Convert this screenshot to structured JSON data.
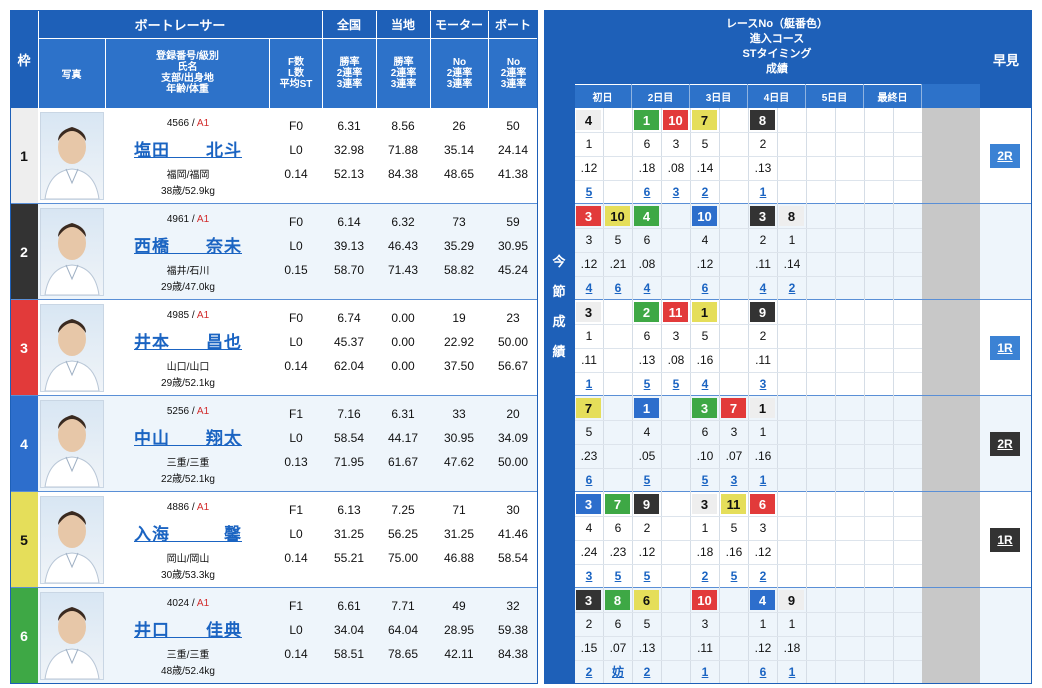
{
  "header": {
    "waku": "枠",
    "boat_racer": "ボートレーサー",
    "photo": "写真",
    "reg_info": [
      "登録番号/級別",
      "氏名",
      "支部/出身地",
      "年齢/体重"
    ],
    "f_info": [
      "F数",
      "L数",
      "平均ST"
    ],
    "national": "全国",
    "local": "当地",
    "motor": "モーター",
    "boat": "ボート",
    "rate_info": [
      "勝率",
      "2連率",
      "3連率"
    ],
    "no_info": [
      "No",
      "2連率",
      "3連率"
    ],
    "race_info": [
      "レースNo（艇番色）",
      "進入コース",
      "STタイミング",
      "成績"
    ],
    "days": [
      "初日",
      "2日目",
      "3日目",
      "4日目",
      "5日目",
      "最終日"
    ],
    "hayami": "早見",
    "konsetsu": [
      "今",
      "節",
      "成",
      "績"
    ]
  },
  "colors": {
    "header": "#1e60b8",
    "frame": [
      "#eeeeee",
      "#333333",
      "#e23a3a",
      "#2d6ecc",
      "#e5de5a",
      "#3ea845"
    ],
    "hayami_blue": "#3b82d4",
    "hayami_black": "#333333"
  },
  "racers": [
    {
      "waku": "1",
      "reg": "4566",
      "cls": "A1",
      "name": "塩田　　北斗",
      "branch": "福岡/福岡",
      "age": "38歳/52.9kg",
      "f": "F0",
      "l": "L0",
      "st": "0.14",
      "nat": [
        "6.31",
        "32.98",
        "52.13"
      ],
      "loc": [
        "8.56",
        "71.88",
        "84.38"
      ],
      "motor": [
        "26",
        "35.14",
        "48.65"
      ],
      "boat": [
        "50",
        "24.14",
        "41.38"
      ],
      "hayami": "2R",
      "hayami_color": "blue",
      "results": [
        {
          "col": 0,
          "race": "4",
          "color": "#eeeeee",
          "course": "1",
          "st": ".12",
          "rank": "5"
        },
        {
          "col": 2,
          "race": "1",
          "color": "#3ea845",
          "course": "6",
          "st": ".18",
          "rank": "6"
        },
        {
          "col": 3,
          "race": "10",
          "color": "#e23a3a",
          "course": "3",
          "st": ".08",
          "rank": "3"
        },
        {
          "col": 4,
          "race": "7",
          "color": "#e5de5a",
          "course": "5",
          "st": ".14",
          "rank": "2"
        },
        {
          "col": 6,
          "race": "8",
          "color": "#333333",
          "course": "2",
          "st": ".13",
          "rank": "1"
        }
      ]
    },
    {
      "waku": "2",
      "reg": "4961",
      "cls": "A1",
      "name": "西橋　　奈未",
      "branch": "福井/石川",
      "age": "29歳/47.0kg",
      "f": "F0",
      "l": "L0",
      "st": "0.15",
      "nat": [
        "6.14",
        "39.13",
        "58.70"
      ],
      "loc": [
        "6.32",
        "46.43",
        "71.43"
      ],
      "motor": [
        "73",
        "35.29",
        "58.82"
      ],
      "boat": [
        "59",
        "30.95",
        "45.24"
      ],
      "hayami": "",
      "hayami_color": "",
      "results": [
        {
          "col": 0,
          "race": "3",
          "color": "#e23a3a",
          "course": "3",
          "st": ".12",
          "rank": "4"
        },
        {
          "col": 1,
          "race": "10",
          "color": "#e5de5a",
          "course": "5",
          "st": ".21",
          "rank": "6"
        },
        {
          "col": 2,
          "race": "4",
          "color": "#3ea845",
          "course": "6",
          "st": ".08",
          "rank": "4"
        },
        {
          "col": 4,
          "race": "10",
          "color": "#2d6ecc",
          "course": "4",
          "st": ".12",
          "rank": "6"
        },
        {
          "col": 6,
          "race": "3",
          "color": "#333333",
          "course": "2",
          "st": ".11",
          "rank": "4"
        },
        {
          "col": 7,
          "race": "8",
          "color": "#eeeeee",
          "course": "1",
          "st": ".14",
          "rank": "2"
        }
      ]
    },
    {
      "waku": "3",
      "reg": "4985",
      "cls": "A1",
      "name": "井本　　昌也",
      "branch": "山口/山口",
      "age": "29歳/52.1kg",
      "f": "F0",
      "l": "L0",
      "st": "0.14",
      "nat": [
        "6.74",
        "45.37",
        "62.04"
      ],
      "loc": [
        "0.00",
        "0.00",
        "0.00"
      ],
      "motor": [
        "19",
        "22.92",
        "37.50"
      ],
      "boat": [
        "23",
        "50.00",
        "56.67"
      ],
      "hayami": "1R",
      "hayami_color": "blue",
      "results": [
        {
          "col": 0,
          "race": "3",
          "color": "#eeeeee",
          "course": "1",
          "st": ".11",
          "rank": "1"
        },
        {
          "col": 2,
          "race": "2",
          "color": "#3ea845",
          "course": "6",
          "st": ".13",
          "rank": "5"
        },
        {
          "col": 3,
          "race": "11",
          "color": "#e23a3a",
          "course": "3",
          "st": ".08",
          "rank": "5"
        },
        {
          "col": 4,
          "race": "1",
          "color": "#e5de5a",
          "course": "5",
          "st": ".16",
          "rank": "4"
        },
        {
          "col": 6,
          "race": "9",
          "color": "#333333",
          "course": "2",
          "st": ".11",
          "rank": "3"
        }
      ]
    },
    {
      "waku": "4",
      "reg": "5256",
      "cls": "A1",
      "name": "中山　　翔太",
      "branch": "三重/三重",
      "age": "22歳/52.1kg",
      "f": "F1",
      "l": "L0",
      "st": "0.13",
      "nat": [
        "7.16",
        "58.54",
        "71.95"
      ],
      "loc": [
        "6.31",
        "44.17",
        "61.67"
      ],
      "motor": [
        "33",
        "30.95",
        "47.62"
      ],
      "boat": [
        "20",
        "34.09",
        "50.00"
      ],
      "hayami": "2R",
      "hayami_color": "black",
      "results": [
        {
          "col": 0,
          "race": "7",
          "color": "#e5de5a",
          "course": "5",
          "st": ".23",
          "rank": "6"
        },
        {
          "col": 2,
          "race": "1",
          "color": "#2d6ecc",
          "course": "4",
          "st": ".05",
          "rank": "5"
        },
        {
          "col": 4,
          "race": "3",
          "color": "#3ea845",
          "course": "6",
          "st": ".10",
          "rank": "5"
        },
        {
          "col": 5,
          "race": "7",
          "color": "#e23a3a",
          "course": "3",
          "st": ".07",
          "rank": "3"
        },
        {
          "col": 6,
          "race": "1",
          "color": "#eeeeee",
          "course": "1",
          "st": ".16",
          "rank": "1"
        }
      ]
    },
    {
      "waku": "5",
      "reg": "4886",
      "cls": "A1",
      "name": "入海　　　馨",
      "branch": "岡山/岡山",
      "age": "30歳/53.3kg",
      "f": "F1",
      "l": "L0",
      "st": "0.14",
      "nat": [
        "6.13",
        "31.25",
        "55.21"
      ],
      "loc": [
        "7.25",
        "56.25",
        "75.00"
      ],
      "motor": [
        "71",
        "31.25",
        "46.88"
      ],
      "boat": [
        "30",
        "41.46",
        "58.54"
      ],
      "hayami": "1R",
      "hayami_color": "black",
      "results": [
        {
          "col": 0,
          "race": "3",
          "color": "#2d6ecc",
          "course": "4",
          "st": ".24",
          "rank": "3"
        },
        {
          "col": 1,
          "race": "7",
          "color": "#3ea845",
          "course": "6",
          "st": ".23",
          "rank": "5"
        },
        {
          "col": 2,
          "race": "9",
          "color": "#333333",
          "course": "2",
          "st": ".12",
          "rank": "5"
        },
        {
          "col": 4,
          "race": "3",
          "color": "#eeeeee",
          "course": "1",
          "st": ".18",
          "rank": "2"
        },
        {
          "col": 5,
          "race": "11",
          "color": "#e5de5a",
          "course": "5",
          "st": ".16",
          "rank": "5"
        },
        {
          "col": 6,
          "race": "6",
          "color": "#e23a3a",
          "course": "3",
          "st": ".12",
          "rank": "2"
        }
      ]
    },
    {
      "waku": "6",
      "reg": "4024",
      "cls": "A1",
      "name": "井口　　佳典",
      "branch": "三重/三重",
      "age": "48歳/52.4kg",
      "f": "F1",
      "l": "L0",
      "st": "0.14",
      "nat": [
        "6.61",
        "34.04",
        "58.51"
      ],
      "loc": [
        "7.71",
        "64.04",
        "78.65"
      ],
      "motor": [
        "49",
        "28.95",
        "42.11"
      ],
      "boat": [
        "32",
        "59.38",
        "84.38"
      ],
      "hayami": "",
      "hayami_color": "",
      "results": [
        {
          "col": 0,
          "race": "3",
          "color": "#333333",
          "course": "2",
          "st": ".15",
          "rank": "2"
        },
        {
          "col": 1,
          "race": "8",
          "color": "#3ea845",
          "course": "6",
          "st": ".07",
          "rank": "妨"
        },
        {
          "col": 2,
          "race": "6",
          "color": "#e5de5a",
          "course": "5",
          "st": ".13",
          "rank": "2"
        },
        {
          "col": 4,
          "race": "10",
          "color": "#e23a3a",
          "course": "3",
          "st": ".11",
          "rank": "1"
        },
        {
          "col": 6,
          "race": "4",
          "color": "#2d6ecc",
          "course": "1",
          "st": ".12",
          "rank": "6"
        },
        {
          "col": 7,
          "race": "9",
          "color": "#eeeeee",
          "course": "1",
          "st": ".18",
          "rank": "1"
        }
      ]
    }
  ]
}
